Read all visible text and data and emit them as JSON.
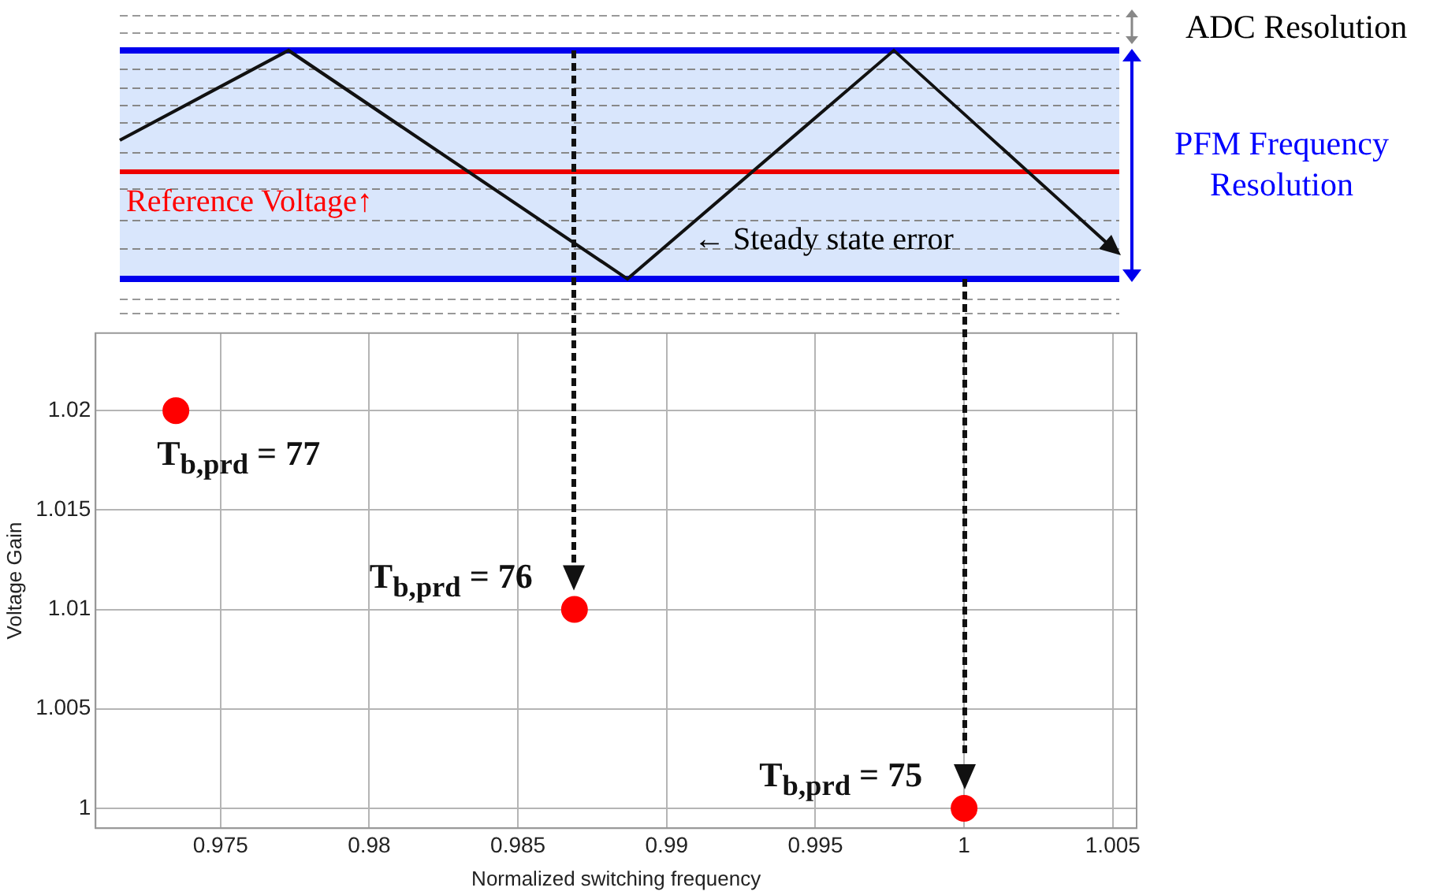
{
  "chart_data": {
    "type": "scatter",
    "xlabel": "Normalized switching frequency",
    "ylabel": "Voltage Gain",
    "x": [
      0.9735,
      0.9869,
      1
    ],
    "values": [
      1.02,
      1.01,
      1
    ],
    "color": "#ff0000",
    "marker": "circle",
    "grid": true,
    "xlim": [
      0.9708,
      1.0058
    ],
    "ylim": [
      0.999,
      1.0239
    ],
    "xticks": [
      0.975,
      0.98,
      0.985,
      0.99,
      0.995,
      1,
      1.005
    ],
    "yticks": [
      1,
      1.005,
      1.01,
      1.015,
      1.02
    ],
    "annotations": [
      "ADC Resolution",
      "PFM Frequency Resolution",
      "Reference Voltage↑",
      "← Steady state error",
      {
        "text": "T$_{b,prd}$ = 77",
        "x": 0.9735,
        "y": 1.02
      },
      {
        "text": "T$_{b,prd}$ = 76",
        "x": 0.9869,
        "y": 1.01
      },
      {
        "text": "T$_{b,prd}$ = 75",
        "x": 1,
        "y": 1
      }
    ]
  }
}
